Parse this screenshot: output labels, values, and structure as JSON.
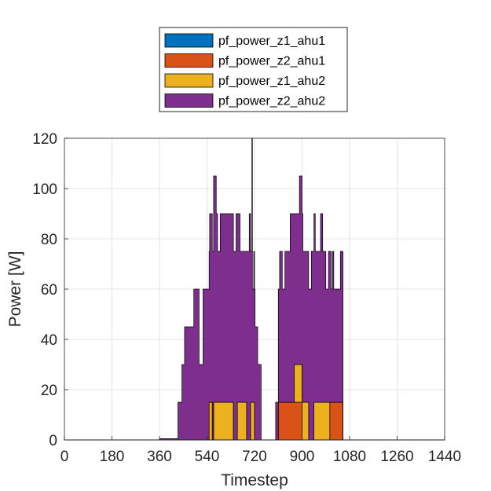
{
  "chart_data": {
    "type": "area",
    "stacked": true,
    "title": "",
    "xlabel": "Timestep",
    "ylabel": "Power [W]",
    "xlim": [
      0,
      1440
    ],
    "ylim": [
      0,
      120
    ],
    "xticks": [
      0,
      180,
      360,
      540,
      720,
      900,
      1080,
      1260,
      1440
    ],
    "yticks": [
      0,
      20,
      40,
      60,
      80,
      100,
      120
    ],
    "grid": true,
    "legend_position": "top-center-outside",
    "series": [
      {
        "name": "pf_power_z1_ahu1",
        "color": "#0072BD",
        "points": [
          [
            0,
            0
          ],
          [
            1440,
            0
          ]
        ]
      },
      {
        "name": "pf_power_z2_ahu1",
        "color": "#D95319",
        "points": [
          [
            0,
            0
          ],
          [
            810,
            0
          ],
          [
            810,
            15
          ],
          [
            900,
            15
          ],
          [
            900,
            0
          ],
          [
            1005,
            0
          ],
          [
            1005,
            15
          ],
          [
            1055,
            15
          ],
          [
            1055,
            0
          ],
          [
            1440,
            0
          ]
        ]
      },
      {
        "name": "pf_power_z1_ahu2",
        "color": "#EDB120",
        "points": [
          [
            0,
            0
          ],
          [
            548,
            0
          ],
          [
            548,
            15
          ],
          [
            560,
            15
          ],
          [
            560,
            0
          ],
          [
            565,
            0
          ],
          [
            565,
            15
          ],
          [
            640,
            15
          ],
          [
            640,
            0
          ],
          [
            655,
            0
          ],
          [
            655,
            15
          ],
          [
            690,
            15
          ],
          [
            690,
            0
          ],
          [
            705,
            0
          ],
          [
            705,
            15
          ],
          [
            720,
            15
          ],
          [
            720,
            0
          ],
          [
            870,
            0
          ],
          [
            870,
            15
          ],
          [
            925,
            15
          ],
          [
            925,
            0
          ],
          [
            945,
            0
          ],
          [
            945,
            15
          ],
          [
            1005,
            15
          ],
          [
            1005,
            0
          ],
          [
            1440,
            0
          ]
        ]
      },
      {
        "name": "pf_power_z2_ahu2",
        "color": "#7E2F8E",
        "points": [
          [
            0,
            0
          ],
          [
            360,
            0
          ],
          [
            360,
            0.5
          ],
          [
            430,
            0.5
          ],
          [
            430,
            15
          ],
          [
            445,
            15
          ],
          [
            445,
            30
          ],
          [
            455,
            30
          ],
          [
            455,
            45
          ],
          [
            490,
            45
          ],
          [
            490,
            60
          ],
          [
            510,
            60
          ],
          [
            510,
            30
          ],
          [
            525,
            30
          ],
          [
            525,
            60
          ],
          [
            550,
            60
          ],
          [
            550,
            75
          ],
          [
            565,
            75
          ],
          [
            565,
            90
          ],
          [
            575,
            90
          ],
          [
            575,
            75
          ],
          [
            580,
            75
          ],
          [
            580,
            60
          ],
          [
            590,
            60
          ],
          [
            590,
            75
          ],
          [
            650,
            75
          ],
          [
            650,
            90
          ],
          [
            655,
            90
          ],
          [
            655,
            75
          ],
          [
            665,
            75
          ],
          [
            665,
            60
          ],
          [
            690,
            60
          ],
          [
            690,
            75
          ],
          [
            700,
            75
          ],
          [
            700,
            90
          ],
          [
            705,
            90
          ],
          [
            705,
            60
          ],
          [
            710,
            60
          ],
          [
            710,
            105
          ],
          [
            712,
            105
          ],
          [
            712,
            45
          ],
          [
            717,
            45
          ],
          [
            717,
            60
          ],
          [
            722,
            60
          ],
          [
            722,
            45
          ],
          [
            732,
            45
          ],
          [
            732,
            30
          ],
          [
            745,
            30
          ],
          [
            745,
            0
          ],
          [
            800,
            0
          ],
          [
            800,
            15
          ],
          [
            810,
            15
          ],
          [
            810,
            45
          ],
          [
            815,
            45
          ],
          [
            815,
            60
          ],
          [
            825,
            60
          ],
          [
            825,
            45
          ],
          [
            835,
            45
          ],
          [
            835,
            60
          ],
          [
            855,
            60
          ],
          [
            855,
            75
          ],
          [
            870,
            75
          ],
          [
            870,
            60
          ],
          [
            890,
            60
          ],
          [
            890,
            75
          ],
          [
            903,
            75
          ],
          [
            903,
            60
          ],
          [
            935,
            60
          ],
          [
            935,
            75
          ],
          [
            950,
            75
          ],
          [
            950,
            60
          ],
          [
            970,
            60
          ],
          [
            970,
            75
          ],
          [
            978,
            75
          ],
          [
            978,
            60
          ],
          [
            990,
            60
          ],
          [
            990,
            45
          ],
          [
            1000,
            45
          ],
          [
            1000,
            60
          ],
          [
            1010,
            60
          ],
          [
            1010,
            45
          ],
          [
            1015,
            45
          ],
          [
            1015,
            60
          ],
          [
            1020,
            60
          ],
          [
            1020,
            45
          ],
          [
            1045,
            45
          ],
          [
            1045,
            60
          ],
          [
            1055,
            60
          ],
          [
            1055,
            0
          ],
          [
            1440,
            0
          ]
        ]
      }
    ]
  }
}
